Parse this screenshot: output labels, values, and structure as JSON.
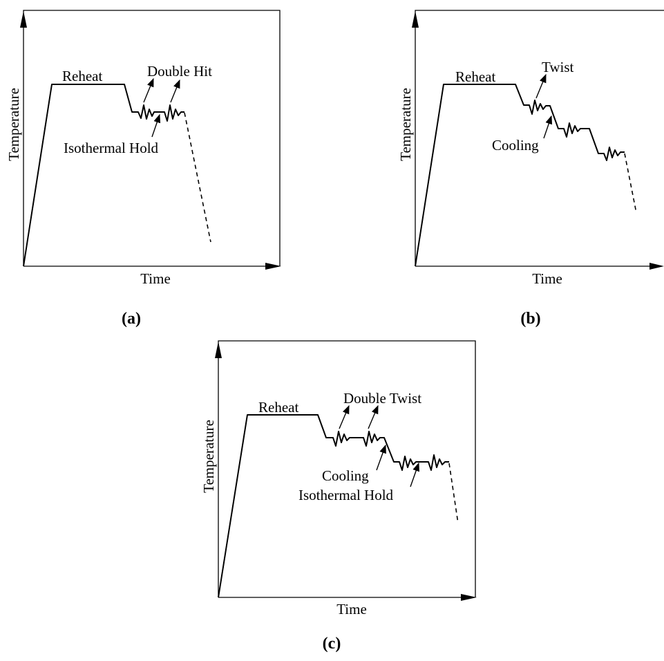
{
  "figure": {
    "panel_a": {
      "caption": "(a)",
      "y_axis_label": "Temperature",
      "x_axis_label": "Time",
      "annotations": {
        "reheat": "Reheat",
        "deformation": "Double Hit",
        "hold": "Isothermal Hold"
      }
    },
    "panel_b": {
      "caption": "(b)",
      "y_axis_label": "Temperature",
      "x_axis_label": "Time",
      "annotations": {
        "reheat": "Reheat",
        "deformation": "Twist",
        "cooling": "Cooling"
      }
    },
    "panel_c": {
      "caption": "(c)",
      "y_axis_label": "Temperature",
      "x_axis_label": "Time",
      "annotations": {
        "reheat": "Reheat",
        "deformation": "Double Twist",
        "cooling": "Cooling",
        "hold": "Isothermal Hold"
      }
    }
  }
}
